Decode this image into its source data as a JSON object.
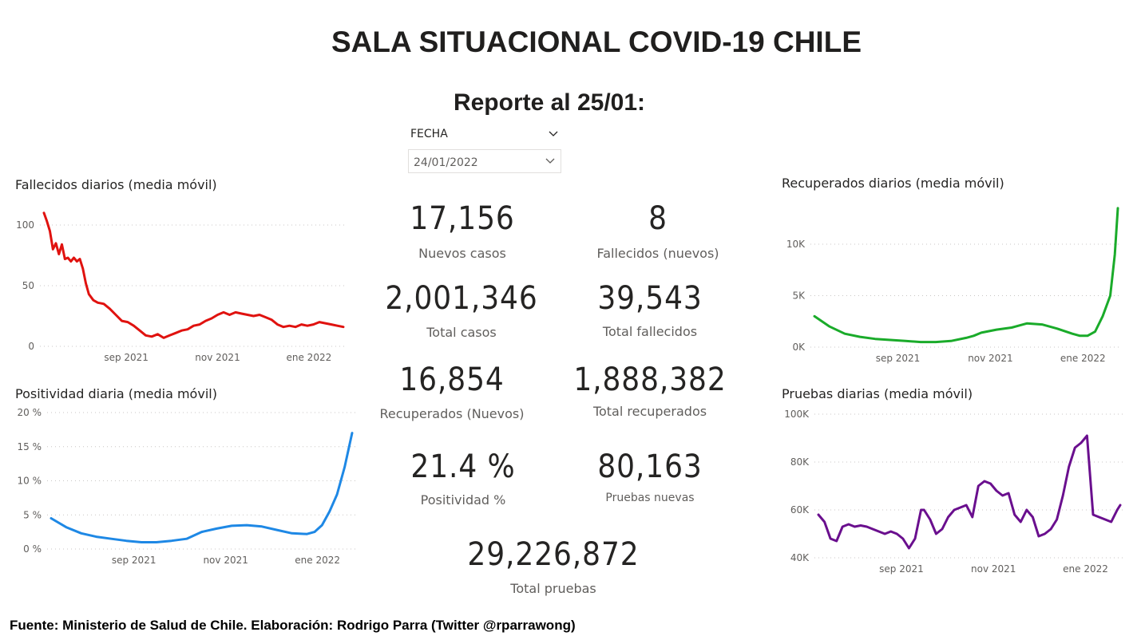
{
  "title": "SALA SITUACIONAL COVID-19 CHILE",
  "subtitle": "Reporte al 25/01:",
  "slicer": {
    "label": "FECHA",
    "value": "24/01/2022"
  },
  "kpis": {
    "nuevos_casos": {
      "value": "17,156",
      "label": "Nuevos casos"
    },
    "fallecidos_nuevos": {
      "value": "8",
      "label": "Fallecidos (nuevos)"
    },
    "total_casos": {
      "value": "2,001,346",
      "label": "Total casos"
    },
    "total_fallecidos": {
      "value": "39,543",
      "label": "Total fallecidos"
    },
    "recuperados_nuevos": {
      "value": "16,854",
      "label": "Recuperados (Nuevos)"
    },
    "total_recuperados": {
      "value": "1,888,382",
      "label": "Total recuperados"
    },
    "positividad": {
      "value": "21.4 %",
      "label": "Positividad %"
    },
    "pruebas_nuevas": {
      "value": "80,163",
      "label": "Pruebas nuevas"
    },
    "total_pruebas": {
      "value": "29,226,872",
      "label": "Total pruebas"
    }
  },
  "footer": "Fuente: Ministerio de Salud de Chile. Elaboración: Rodrigo Parra (Twitter @rparrawong)",
  "chart_data": [
    {
      "id": "fallecidos",
      "type": "line",
      "title": "Fallecidos diarios (media móvil)",
      "color": "#e0120f",
      "x_ticks": [
        "sep 2021",
        "nov 2021",
        "ene 2022"
      ],
      "x_tick_days": [
        55,
        116,
        177
      ],
      "y_ticks": [
        "0",
        "50",
        "100"
      ],
      "y_tick_values": [
        0,
        50,
        100
      ],
      "ylim": [
        0,
        100
      ],
      "xlim": [
        0,
        200
      ],
      "grid": true,
      "x_days": [
        0,
        2,
        4,
        6,
        8,
        10,
        12,
        14,
        16,
        18,
        20,
        22,
        24,
        26,
        28,
        30,
        33,
        36,
        40,
        44,
        48,
        52,
        56,
        60,
        64,
        68,
        72,
        76,
        80,
        84,
        88,
        92,
        96,
        100,
        104,
        108,
        112,
        116,
        120,
        124,
        128,
        132,
        136,
        140,
        144,
        148,
        152,
        156,
        160,
        164,
        168,
        172,
        176,
        180,
        184,
        188,
        192,
        196,
        200
      ],
      "values": [
        110,
        103,
        95,
        80,
        85,
        76,
        84,
        72,
        73,
        70,
        73,
        70,
        72,
        64,
        52,
        43,
        38,
        36,
        35,
        31,
        26,
        21,
        20,
        17,
        13,
        9,
        8,
        10,
        7,
        9,
        11,
        13,
        14,
        17,
        18,
        21,
        23,
        26,
        28,
        26,
        28,
        27,
        26,
        25,
        26,
        24,
        22,
        18,
        16,
        17,
        16,
        18,
        17,
        18,
        20,
        19,
        18,
        17,
        16
      ]
    },
    {
      "id": "positividad",
      "type": "line",
      "title": "Positividad diaria (media móvil)",
      "color": "#1e88e5",
      "x_ticks": [
        "sep 2021",
        "nov 2021",
        "ene 2022"
      ],
      "x_tick_days": [
        55,
        116,
        177
      ],
      "y_ticks": [
        "0 %",
        "5 %",
        "10 %",
        "15 %",
        "20 %"
      ],
      "y_tick_values": [
        0,
        5,
        10,
        15,
        20
      ],
      "ylim": [
        0,
        20
      ],
      "xlim": [
        0,
        200
      ],
      "grid": true,
      "x_days": [
        0,
        10,
        20,
        30,
        40,
        50,
        60,
        70,
        80,
        90,
        100,
        110,
        120,
        130,
        140,
        150,
        160,
        170,
        175,
        180,
        185,
        190,
        195,
        200
      ],
      "values": [
        4.5,
        3.2,
        2.3,
        1.8,
        1.5,
        1.2,
        1.0,
        1.0,
        1.2,
        1.5,
        2.5,
        3.0,
        3.4,
        3.5,
        3.3,
        2.8,
        2.3,
        2.2,
        2.5,
        3.5,
        5.5,
        8.0,
        12.0,
        17.0
      ]
    },
    {
      "id": "recuperados",
      "type": "line",
      "title": "Recuperados diarios (media móvil)",
      "color": "#1aab2a",
      "x_ticks": [
        "sep 2021",
        "nov 2021",
        "ene 2022"
      ],
      "x_tick_days": [
        55,
        116,
        177
      ],
      "y_ticks": [
        "0K",
        "5K",
        "10K"
      ],
      "y_tick_values": [
        0,
        5000,
        10000
      ],
      "ylim": [
        0,
        10000
      ],
      "xlim": [
        0,
        200
      ],
      "grid": true,
      "x_days": [
        0,
        10,
        20,
        30,
        40,
        50,
        60,
        70,
        80,
        90,
        100,
        105,
        110,
        120,
        130,
        140,
        150,
        160,
        170,
        175,
        180,
        185,
        190,
        195,
        198,
        200
      ],
      "values": [
        3000,
        2000,
        1300,
        1000,
        800,
        700,
        600,
        500,
        500,
        600,
        900,
        1100,
        1400,
        1700,
        1900,
        2300,
        2200,
        1800,
        1300,
        1100,
        1100,
        1500,
        3000,
        5000,
        9000,
        13500
      ]
    },
    {
      "id": "pruebas",
      "type": "line",
      "title": "Pruebas diarias (media móvil)",
      "color": "#6a0f8e",
      "x_ticks": [
        "sep 2021",
        "nov 2021",
        "ene 2022"
      ],
      "x_tick_days": [
        55,
        116,
        177
      ],
      "y_ticks": [
        "40K",
        "60K",
        "80K",
        "100K"
      ],
      "y_tick_values": [
        40000,
        60000,
        80000,
        100000
      ],
      "ylim": [
        40000,
        100000
      ],
      "xlim": [
        0,
        200
      ],
      "grid": true,
      "x_days": [
        0,
        4,
        8,
        12,
        16,
        20,
        24,
        28,
        32,
        36,
        40,
        44,
        48,
        52,
        56,
        60,
        64,
        68,
        70,
        74,
        78,
        82,
        86,
        90,
        94,
        98,
        102,
        106,
        110,
        114,
        118,
        122,
        126,
        130,
        134,
        138,
        142,
        146,
        150,
        154,
        158,
        162,
        166,
        170,
        174,
        178,
        182,
        186,
        190,
        194,
        198,
        200
      ],
      "values": [
        58000,
        55000,
        48000,
        47000,
        53000,
        54000,
        53000,
        53500,
        53000,
        52000,
        51000,
        50000,
        51000,
        50000,
        48000,
        44000,
        48000,
        60000,
        60000,
        56000,
        50000,
        52000,
        57000,
        60000,
        61000,
        62000,
        57000,
        70000,
        72000,
        71000,
        68000,
        66000,
        67000,
        58000,
        55000,
        60000,
        57000,
        49000,
        50000,
        52000,
        56000,
        66000,
        78000,
        86000,
        88000,
        91000,
        58000,
        57000,
        56000,
        55000,
        60000,
        62000
      ]
    }
  ]
}
